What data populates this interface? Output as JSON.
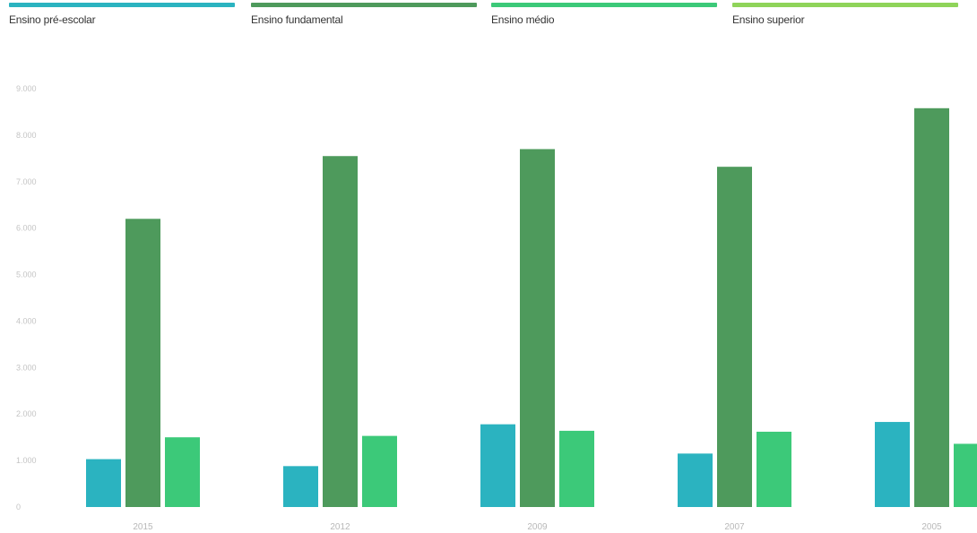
{
  "chart_data": {
    "type": "bar",
    "categories": [
      "2015",
      "2012",
      "2009",
      "2007",
      "2005"
    ],
    "series": [
      {
        "name": "Ensino pré-escolar",
        "color": "#2bb3c0",
        "values": [
          1030,
          880,
          1780,
          1150,
          1830
        ]
      },
      {
        "name": "Ensino fundamental",
        "color": "#4e9a5c",
        "values": [
          6200,
          7550,
          7700,
          7320,
          8580
        ]
      },
      {
        "name": "Ensino médio",
        "color": "#3cc979",
        "values": [
          1500,
          1530,
          1640,
          1620,
          1360
        ]
      },
      {
        "name": "Ensino superior",
        "color": "#8fd45a",
        "values": [
          null,
          null,
          null,
          null,
          null
        ]
      }
    ],
    "y_ticks": [
      "0",
      "1.000",
      "2.000",
      "3.000",
      "4.000",
      "5.000",
      "6.000",
      "7.000",
      "8.000",
      "9.000"
    ],
    "ylim": [
      0,
      9000
    ],
    "grid": false,
    "legend_position": "top"
  }
}
